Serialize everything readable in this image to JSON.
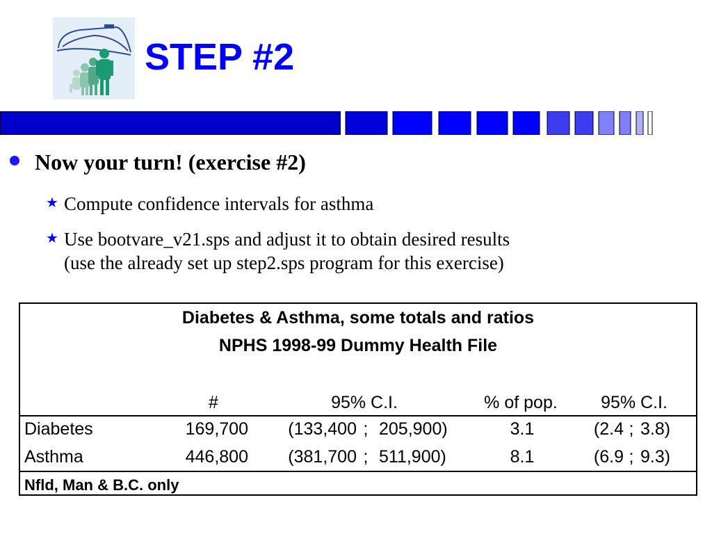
{
  "slide": {
    "title": "STEP #2"
  },
  "logo": {
    "icon": "family-house-logo-icon"
  },
  "bullets": {
    "main": "Now your turn! (exercise #2)",
    "sub": [
      {
        "lines": [
          "Compute confidence intervals for asthma"
        ]
      },
      {
        "lines": [
          "Use bootvare_v21.sps and adjust it to obtain desired results",
          "(use the already set up step2.sps program for this exercise)"
        ]
      }
    ]
  },
  "table": {
    "title_line1": "Diabetes & Asthma, some totals and ratios",
    "title_line2": "NPHS 1998-99 Dummy Health File",
    "headers": [
      "#",
      "95% C.I.",
      "% of pop.",
      "95% C.I."
    ],
    "rows": [
      {
        "label": "Diabetes",
        "count": "169,700",
        "ci_low": "(133,400",
        "ci_sep": ";",
        "ci_high": "205,900)",
        "pct": "3.1",
        "pct_ci_low": "(2.4",
        "pct_ci_sep": ";",
        "pct_ci_high": "3.8)"
      },
      {
        "label": "Asthma",
        "count": "446,800",
        "ci_low": "(381,700",
        "ci_sep": ";",
        "ci_high": "511,900)",
        "pct": "8.1",
        "pct_ci_low": "(6.9",
        "pct_ci_sep": ";",
        "pct_ci_high": "9.3)"
      }
    ],
    "note": "Nfld, Man & B.C. only"
  },
  "colors": {
    "title": "#0000ff",
    "bar_dark": "#0000cc",
    "bar_mid": "#0000ff",
    "bar_light": "#3c3cf0",
    "bar_pale": "#7f7ff7",
    "star": "#0000ff",
    "logo_bg": "#e0ecf7",
    "figure": "#1aa37a"
  }
}
